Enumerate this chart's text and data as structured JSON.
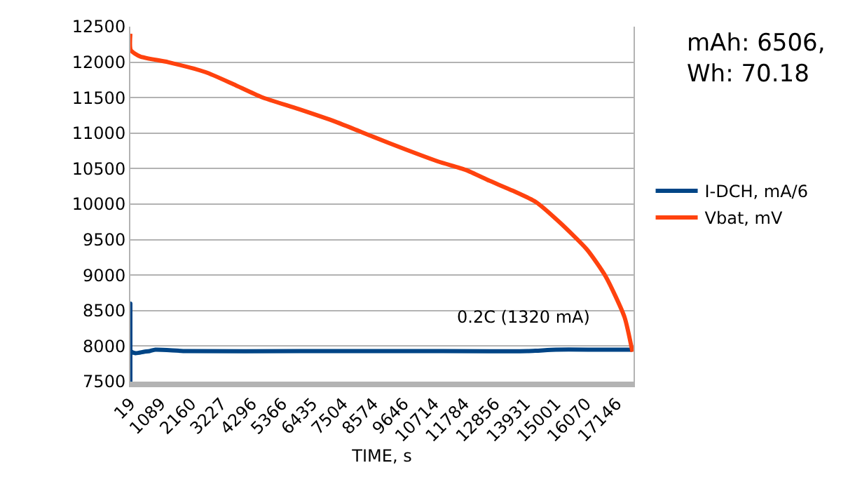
{
  "chart_data": {
    "type": "line",
    "xlabel": "TIME, s",
    "xlim": [
      19,
      17740
    ],
    "xticks": [
      19,
      1089,
      2160,
      3227,
      4296,
      5366,
      6435,
      7504,
      8574,
      9646,
      10714,
      11784,
      12856,
      13931,
      15001,
      16070,
      17146
    ],
    "ylim": [
      7500,
      12500
    ],
    "yticks": [
      7500,
      8000,
      8500,
      9000,
      9500,
      10000,
      10500,
      11000,
      11500,
      12000,
      12500
    ],
    "grid": "y",
    "legend": "right",
    "marker": "none",
    "line_style": "solid",
    "series": [
      {
        "name": "I-DCH, mA/6",
        "color": "#004586",
        "x": [
          19,
          19,
          35,
          200,
          500,
          700,
          900,
          2000,
          6000,
          10000,
          14000,
          15000,
          16500,
          17700
        ],
        "values": [
          7500,
          8600,
          7930,
          7900,
          7920,
          7930,
          7950,
          7930,
          7930,
          7930,
          7930,
          7950,
          7950,
          7950
        ]
      },
      {
        "name": "Vbat, mV",
        "color": "#ff420e",
        "x": [
          19,
          35,
          363,
          1347,
          2660,
          3645,
          4630,
          5940,
          7250,
          8565,
          9710,
          10860,
          11840,
          12660,
          13480,
          14300,
          15120,
          16100,
          16760,
          17420,
          17700
        ],
        "values": [
          12400,
          12170,
          12080,
          12000,
          11860,
          11690,
          11510,
          11340,
          11160,
          10950,
          10770,
          10600,
          10480,
          10330,
          10190,
          10030,
          9750,
          9360,
          8980,
          8410,
          7920
        ]
      }
    ],
    "annotations": [
      "0.2C (1320 mA)",
      "mAh: 6506,\nWh: 70.18"
    ]
  }
}
